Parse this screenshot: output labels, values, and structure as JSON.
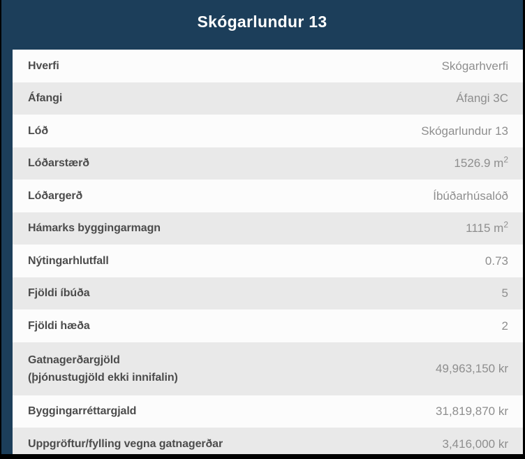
{
  "header": {
    "title": "Skógarlundur 13"
  },
  "colors": {
    "header_background": "#1c3e5a",
    "header_text": "#ffffff",
    "row_white": "#fcfcfc",
    "row_gray": "#e9e9e9",
    "label_text": "#4c4c4c",
    "value_text": "#8e8e8e",
    "frame_black": "#000000"
  },
  "table": {
    "rows": [
      {
        "label": "Hverfi",
        "value": "Skógarhverfi"
      },
      {
        "label": "Áfangi",
        "value": "Áfangi 3C"
      },
      {
        "label": "Lóð",
        "value": "Skógarlundur 13"
      },
      {
        "label": "Lóðarstærð",
        "value": "1526.9 m",
        "value_sup": "2"
      },
      {
        "label": "Lóðargerð",
        "value": "Íbúðarhúsalóð"
      },
      {
        "label": "Hámarks byggingarmagn",
        "value": "1115 m",
        "value_sup": "2"
      },
      {
        "label": "Nýtingarhlutfall",
        "value": "0.73"
      },
      {
        "label": "Fjöldi íbúða",
        "value": "5"
      },
      {
        "label": "Fjöldi hæða",
        "value": "2"
      },
      {
        "label": "Gatnagerðargjöld",
        "label_line2": "(þjónustugjöld ekki innifalin)",
        "value": "49,963,150 kr"
      },
      {
        "label": "Byggingarréttargjald",
        "value": "31,819,870 kr"
      },
      {
        "label": "Uppgröftur/fylling vegna gatnagerðar",
        "value": "3,416,000 kr"
      }
    ]
  }
}
